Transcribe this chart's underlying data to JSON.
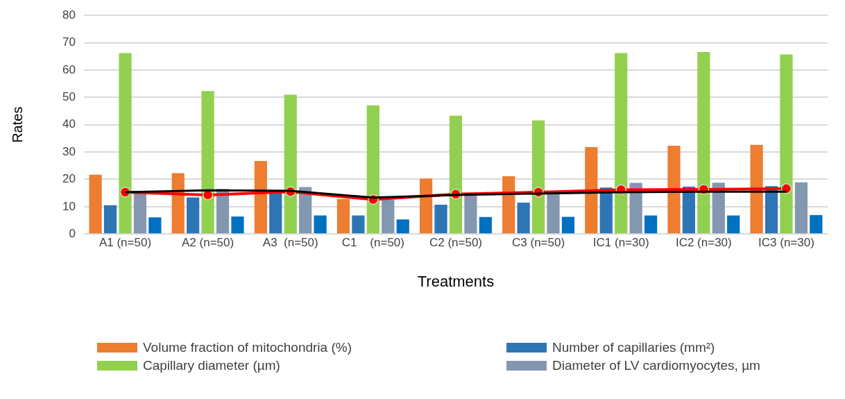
{
  "chart_data": {
    "type": "bar",
    "xlabel": "Treatments",
    "ylabel": "Rates",
    "categories": [
      "A1 (n=50)",
      "A2 (n=50)",
      "A3  (n=50)",
      "C1    (n=50)",
      "C2 (n=50)",
      "C3 (n=50)",
      "IC1 (n=30)",
      "IC2 (n=30)",
      "IC3 (n=30)"
    ],
    "series": [
      {
        "name": "Volume fraction of mitochondria (%)",
        "color": "#ed7d31",
        "values": [
          21.7,
          22.3,
          26.7,
          12.8,
          20.3,
          21.1,
          31.8,
          32.3,
          32.6
        ]
      },
      {
        "name": "Number of capillaries (mm²)",
        "color": "#2e75b6",
        "values": [
          10.5,
          13.4,
          15.5,
          6.8,
          10.7,
          11.5,
          17,
          17.3,
          17.5
        ]
      },
      {
        "name": "Capillary diameter (µm)",
        "color": "#92d050",
        "values": [
          66.2,
          52.3,
          51,
          47.1,
          43.3,
          41.6,
          66.2,
          66.6,
          65.7
        ]
      },
      {
        "name": "Diameter of LV cardiomyocytes, µm",
        "color": "#8497b0",
        "values": [
          15,
          16.5,
          17.2,
          12.5,
          14.5,
          14.5,
          18.7,
          18.8,
          18.9
        ]
      },
      {
        "color": "#0070c0",
        "values": [
          6.1,
          6.4,
          6.8,
          5.3,
          6.2,
          6.3,
          6.8,
          6.8,
          6.9
        ]
      },
      {
        "type": "line",
        "color": "#000000",
        "marker": "none",
        "values": [
          15.3,
          16,
          15.8,
          13.3,
          14.3,
          14.8,
          15.3,
          15.5,
          15.5
        ]
      },
      {
        "type": "line",
        "color": "#ff0000",
        "marker": "circle",
        "values": [
          15.3,
          14.3,
          15.5,
          12.6,
          14.6,
          15.3,
          16.2,
          16.3,
          16.6
        ]
      }
    ],
    "ylim": [
      0,
      80
    ],
    "yticks": [
      0,
      10,
      20,
      30,
      40,
      50,
      60,
      70,
      80
    ],
    "grid": "y",
    "legend": "bottom"
  }
}
